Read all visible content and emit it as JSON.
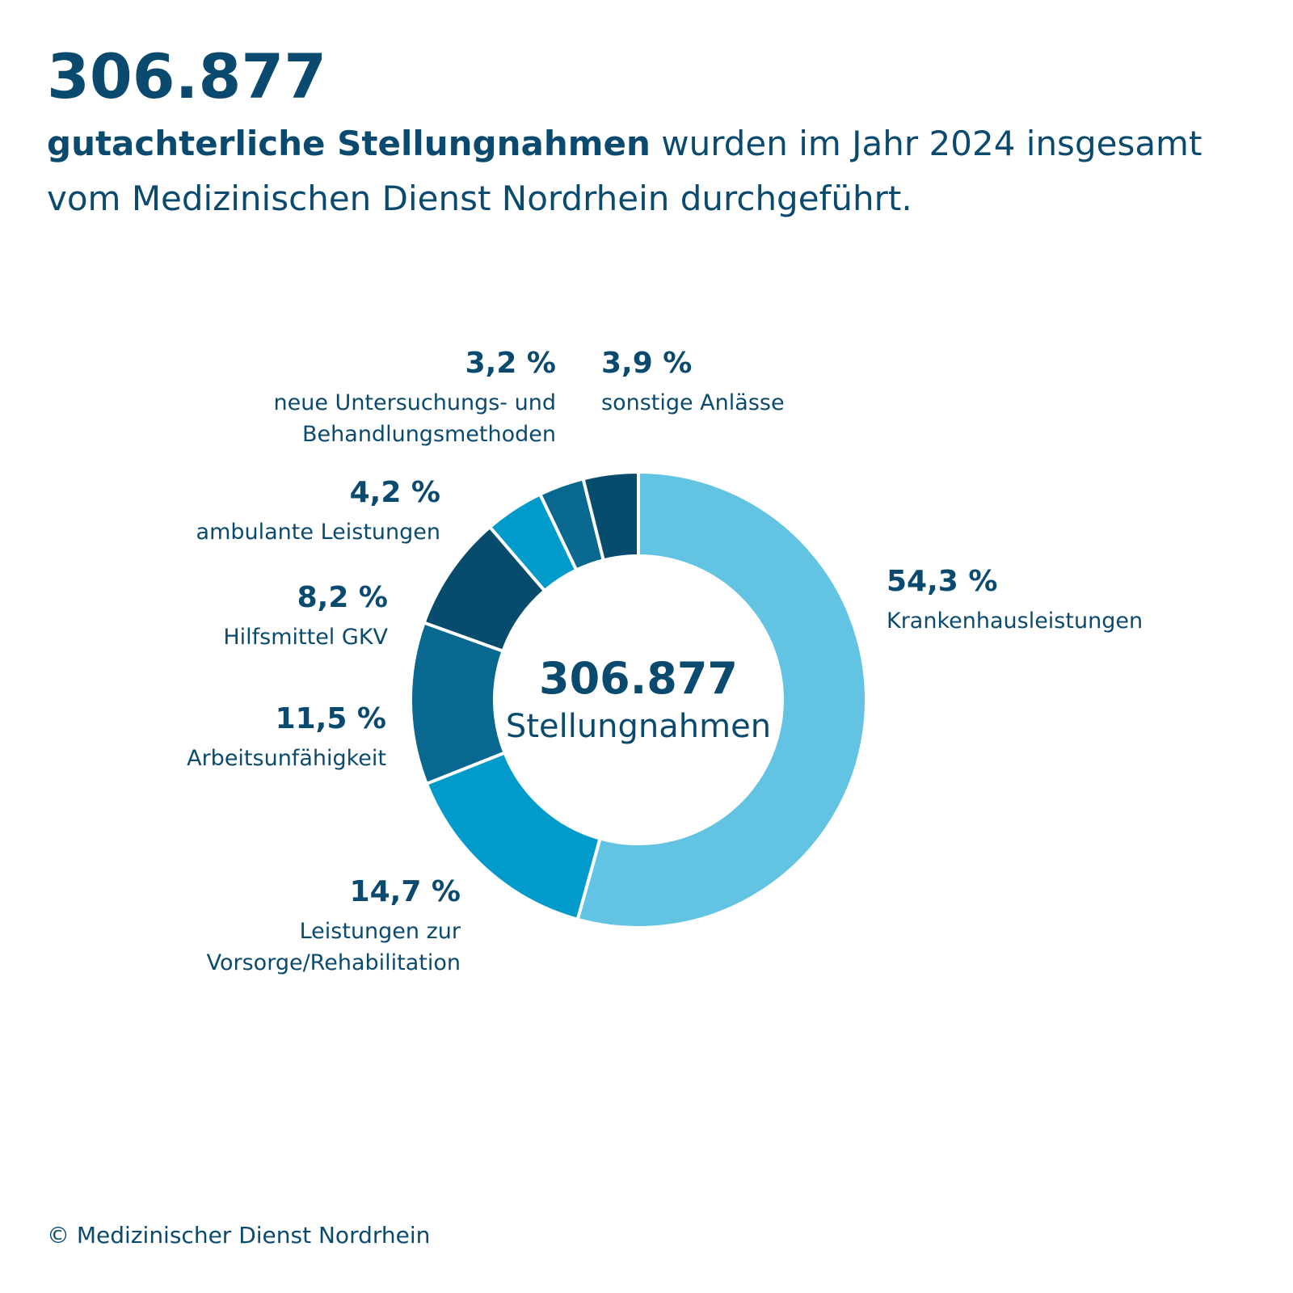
{
  "header": {
    "number": "306.877",
    "sub_bold": "gutachterliche Stellungnahmen",
    "sub_rest": " wurden im Jahr 2024 insgesamt vom Medizinischen Dienst Nordrhein durchgeführt."
  },
  "center": {
    "total": "306.877",
    "label": "Stellungnahmen"
  },
  "footer": "© Medizinischer Dienst Nordrhein",
  "chart_data": {
    "type": "pie",
    "donut": true,
    "total": 306877,
    "slices": [
      {
        "name": "Krankenhausleistungen",
        "value": 54.3,
        "label": "54,3 %",
        "color": "#62c3e3"
      },
      {
        "name": "Leistungen zur Vorsorge/Rehabilitation",
        "value": 14.7,
        "label": "14,7 %",
        "color": "#009bcb"
      },
      {
        "name": "Arbeitsunfähigkeit",
        "value": 11.5,
        "label": "11,5 %",
        "color": "#086890"
      },
      {
        "name": "Hilfsmittel GKV",
        "value": 8.2,
        "label": "8,2 %",
        "color": "#074b6d"
      },
      {
        "name": "ambulante Leistungen",
        "value": 4.2,
        "label": "4,2 %",
        "color": "#009bcb"
      },
      {
        "name": "neue Untersuchungs- und Behandlungsmethoden",
        "value": 3.2,
        "label": "3,2 %",
        "color": "#086890"
      },
      {
        "name": "sonstige Anlässe",
        "value": 3.9,
        "label": "3,9 %",
        "color": "#074b6d"
      }
    ],
    "labels": {
      "krankenhaus": {
        "pct": "54,3 %",
        "name": "Krankenhausleistungen"
      },
      "vorsorge": {
        "pct": "14,7 %",
        "line1": "Leistungen zur",
        "line2": "Vorsorge/Rehabilitation"
      },
      "arbeit": {
        "pct": "11,5 %",
        "name": "Arbeitsunfähigkeit"
      },
      "hilfsmittel": {
        "pct": "8,2 %",
        "name": "Hilfsmittel GKV"
      },
      "ambulant": {
        "pct": "4,2 %",
        "name": "ambulante Leistungen"
      },
      "nub": {
        "pct": "3,2 %",
        "line1": "neue Untersuchungs- und",
        "line2": "Behandlungsmethoden"
      },
      "sonstige": {
        "pct": "3,9 %",
        "name": "sonstige Anlässe"
      }
    }
  }
}
